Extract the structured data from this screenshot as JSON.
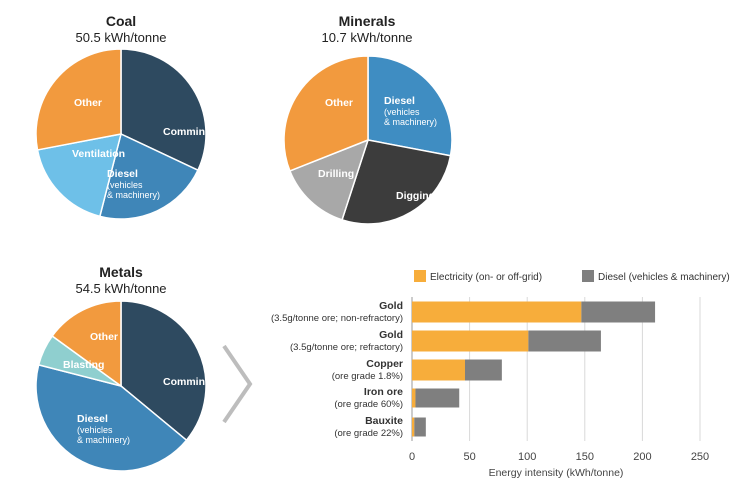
{
  "chart_data": [
    {
      "type": "pie",
      "title": "Coal",
      "subtitle": "50.5 kWh/tonne",
      "slices": [
        {
          "label": "Comminution",
          "sub": "",
          "value": 32,
          "color": "#2e4a60"
        },
        {
          "label": "Diesel",
          "sub": "(vehicles|& machinery)",
          "value": 22,
          "color": "#3f86b8"
        },
        {
          "label": "Ventilation",
          "sub": "",
          "value": 18,
          "color": "#6ec0e8"
        },
        {
          "label": "Other",
          "sub": "",
          "value": 28,
          "color": "#f29a3e"
        }
      ]
    },
    {
      "type": "pie",
      "title": "Minerals",
      "subtitle": "10.7 kWh/tonne",
      "slices": [
        {
          "label": "Diesel",
          "sub": "(vehicles|& machinery)",
          "value": 28,
          "color": "#3f8dc2"
        },
        {
          "label": "Digging",
          "sub": "",
          "value": 27,
          "color": "#3c3c3c"
        },
        {
          "label": "Drilling",
          "sub": "",
          "value": 14,
          "color": "#a8a8a8"
        },
        {
          "label": "Other",
          "sub": "",
          "value": 31,
          "color": "#f29a3e"
        }
      ]
    },
    {
      "type": "pie",
      "title": "Metals",
      "subtitle": "54.5 kWh/tonne",
      "slices": [
        {
          "label": "Comminution",
          "sub": "",
          "value": 36,
          "color": "#2e4a60"
        },
        {
          "label": "Diesel",
          "sub": "(vehicles|& machinery)",
          "value": 43,
          "color": "#3f86b8"
        },
        {
          "label": "Blasting",
          "sub": "",
          "value": 6,
          "color": "#8fcfcf"
        },
        {
          "label": "Other",
          "sub": "",
          "value": 15,
          "color": "#f29a3e"
        }
      ]
    },
    {
      "type": "bar",
      "orientation": "horizontal",
      "stacked": true,
      "categories": [
        {
          "name": "Gold",
          "detail": "(3.5g/tonne ore; non-refractory)"
        },
        {
          "name": "Gold",
          "detail": "(3.5g/tonne ore; refractory)"
        },
        {
          "name": "Copper",
          "detail": "(ore grade 1.8%)"
        },
        {
          "name": "Iron ore",
          "detail": "(ore grade 60%)"
        },
        {
          "name": "Bauxite",
          "detail": "(ore grade 22%)"
        }
      ],
      "series": [
        {
          "name": "Electricity (on- or off-grid)",
          "color": "#f7ad3b",
          "values": [
            147,
            101,
            46,
            3,
            2
          ]
        },
        {
          "name": "Diesel (vehicles & machinery)",
          "color": "#7f7f7f",
          "values": [
            64,
            63,
            32,
            38,
            10
          ]
        }
      ],
      "xlabel": "Energy intensity (kWh/tonne)",
      "xlim": [
        0,
        250
      ],
      "xticks": [
        0,
        50,
        100,
        150,
        200,
        250
      ],
      "grid": true,
      "legend": "top"
    }
  ]
}
